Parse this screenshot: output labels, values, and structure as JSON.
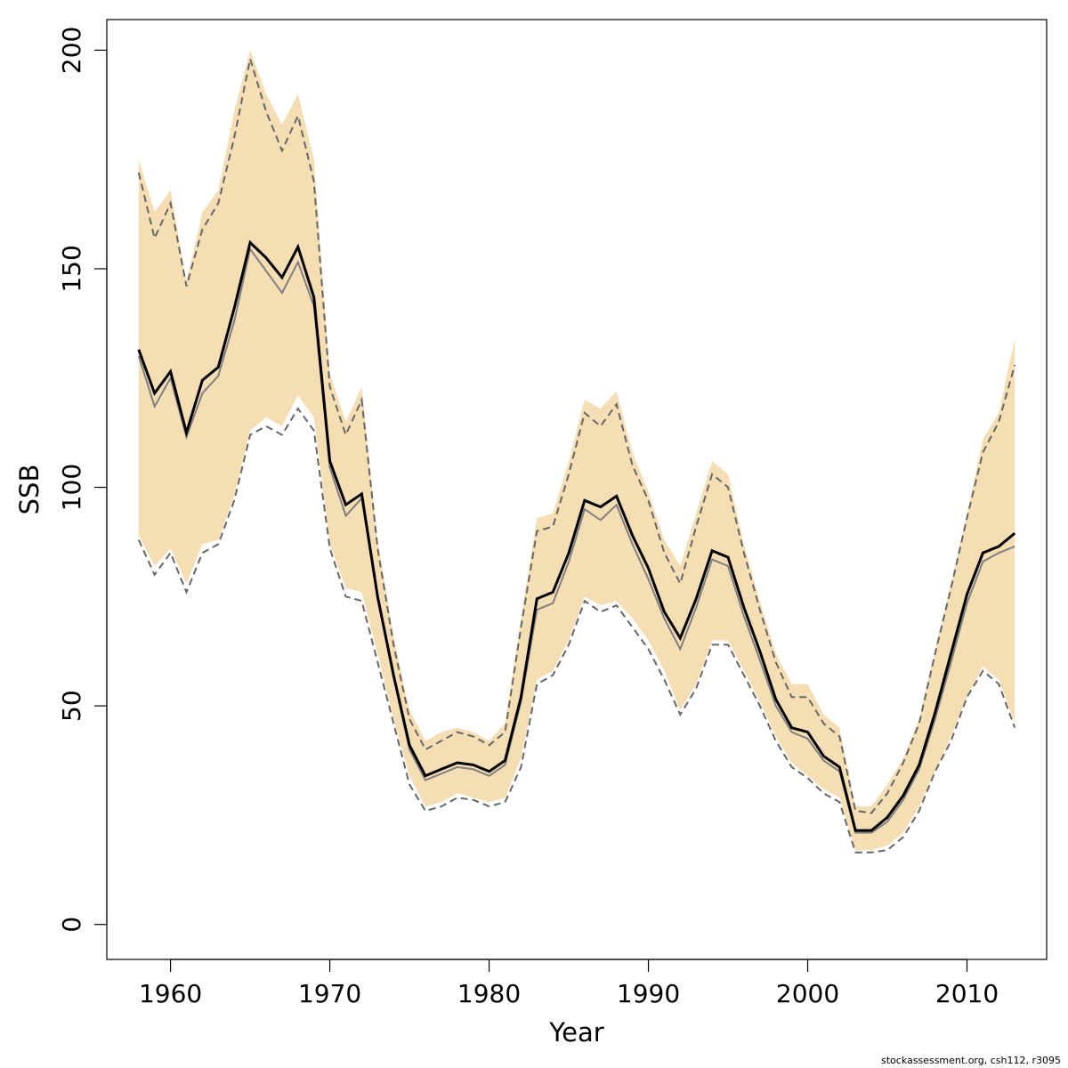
{
  "credit": "stockassessment.org, csh112, r3095",
  "chart_data": {
    "type": "line",
    "xlabel": "Year",
    "ylabel": "SSB",
    "xlim": [
      1956,
      2015
    ],
    "ylim": [
      -8,
      207
    ],
    "x_ticks": [
      1960,
      1970,
      1980,
      1990,
      2000,
      2010
    ],
    "y_ticks": [
      0,
      50,
      100,
      150,
      200
    ],
    "grid": false,
    "colors": {
      "band": "#f5deb3",
      "estimate": "#000000",
      "alt_estimate": "#808080",
      "alt_ci": "#666666"
    },
    "x": [
      1958,
      1959,
      1960,
      1961,
      1962,
      1963,
      1964,
      1965,
      1966,
      1967,
      1968,
      1969,
      1970,
      1971,
      1972,
      1973,
      1974,
      1975,
      1976,
      1977,
      1978,
      1979,
      1980,
      1981,
      1982,
      1983,
      1984,
      1985,
      1986,
      1987,
      1988,
      1989,
      1990,
      1991,
      1992,
      1993,
      1994,
      1995,
      1996,
      1997,
      1998,
      1999,
      2000,
      2001,
      2002,
      2003,
      2004,
      2005,
      2006,
      2007,
      2008,
      2009,
      2010,
      2011,
      2012,
      2013
    ],
    "series": [
      {
        "name": "",
        "role": "ci_lower_band",
        "values": [
          89,
          82,
          86,
          78,
          87,
          88,
          98,
          113,
          116,
          114,
          121,
          116,
          87,
          77,
          76,
          62,
          47,
          34,
          27,
          28,
          30,
          29,
          28,
          29,
          38,
          56,
          58,
          65,
          75,
          73,
          74,
          70,
          65,
          58,
          49,
          55,
          65,
          65,
          58,
          51,
          43,
          37,
          34,
          31,
          29,
          17,
          17,
          18,
          21,
          27,
          35,
          43,
          52,
          59,
          56,
          46
        ]
      },
      {
        "name": "",
        "role": "ci_upper_band",
        "values": [
          175,
          163,
          168,
          147,
          163,
          168,
          186,
          200,
          190,
          183,
          190,
          175,
          126,
          115,
          123,
          88,
          66,
          49,
          42,
          44,
          45,
          44,
          42,
          46,
          70,
          93,
          94,
          106,
          120,
          118,
          122,
          108,
          99,
          88,
          82,
          94,
          106,
          103,
          87,
          74,
          62,
          55,
          55,
          48,
          45,
          27,
          27,
          32,
          38,
          47,
          63,
          78,
          94,
          111,
          117,
          134
        ]
      },
      {
        "name": "",
        "role": "estimate",
        "values": [
          131.5,
          121.5,
          126.5,
          112.5,
          124.5,
          127.5,
          141,
          156,
          152.5,
          148,
          155,
          143.5,
          106,
          96,
          98.5,
          75,
          57,
          41,
          34,
          35.5,
          37,
          36.5,
          35,
          37.5,
          52,
          74.5,
          76,
          85,
          97,
          95.5,
          98,
          89,
          81.5,
          71.5,
          65.5,
          74.5,
          85.5,
          84,
          72.5,
          62.5,
          51.5,
          45,
          44,
          38.5,
          36,
          21.5,
          21.5,
          24.5,
          29.5,
          36.5,
          48.5,
          62,
          75.5,
          85,
          86.5,
          89.5
        ]
      },
      {
        "name": "",
        "role": "alt_estimate",
        "values": [
          130,
          118.5,
          125,
          111.5,
          121.5,
          125.5,
          138,
          154.5,
          149.5,
          144.5,
          151.5,
          141.5,
          104.5,
          93.5,
          97.5,
          74.5,
          56.5,
          40,
          33,
          34.5,
          36,
          35.5,
          34,
          36.5,
          51,
          72,
          73.5,
          83,
          95,
          92.5,
          96,
          87,
          79,
          70,
          63,
          72.5,
          83.5,
          82,
          70.5,
          60.5,
          50,
          44,
          42.5,
          37.5,
          35,
          21,
          21,
          23.5,
          28.5,
          35.5,
          47,
          60,
          73.5,
          83,
          85,
          86.5
        ]
      },
      {
        "name": "",
        "role": "alt_ci_upper",
        "values": [
          172,
          157,
          165,
          146,
          159,
          165,
          180,
          198,
          186,
          177,
          185,
          170,
          123,
          112,
          120,
          86,
          64,
          47,
          40,
          42,
          44,
          43,
          41,
          44,
          68,
          90,
          91,
          103,
          117,
          114,
          119,
          105,
          97,
          85,
          78,
          91,
          103,
          100,
          85,
          72,
          60,
          52,
          52,
          46,
          43,
          26,
          25.5,
          30,
          37,
          46,
          62,
          77,
          93,
          108,
          115,
          128
        ]
      },
      {
        "name": "",
        "role": "alt_ci_lower",
        "values": [
          88,
          80,
          85,
          76,
          85,
          87,
          97,
          112,
          114,
          112,
          118,
          113,
          86,
          75,
          74,
          60,
          46,
          32,
          26,
          27,
          29,
          28.5,
          27,
          28,
          36,
          55,
          57,
          64,
          74,
          71.5,
          73,
          68,
          63,
          56,
          48,
          54,
          64,
          64,
          57,
          50,
          42,
          36,
          33.5,
          30,
          28,
          16.5,
          16.5,
          17,
          20,
          26,
          35,
          42,
          52,
          58,
          55,
          45
        ]
      }
    ]
  }
}
